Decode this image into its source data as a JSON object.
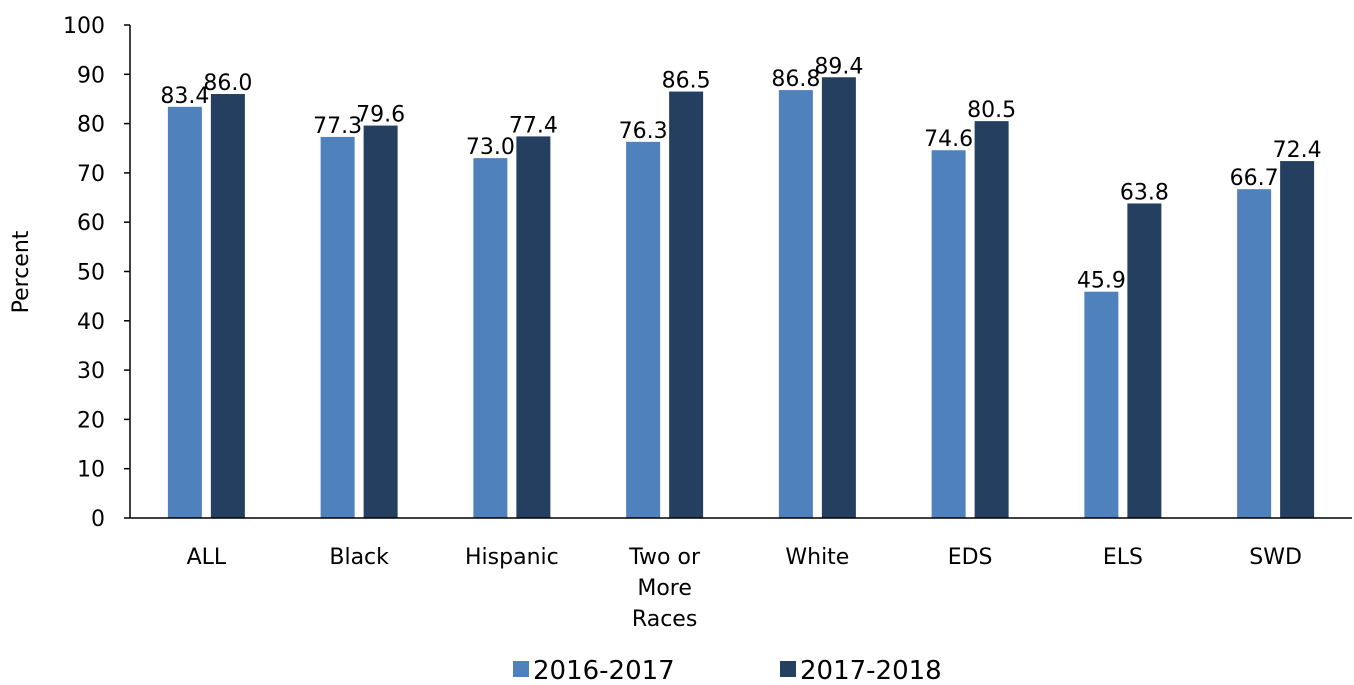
{
  "chart_data": {
    "type": "bar",
    "ylabel": "Percent",
    "ylim": [
      0,
      100
    ],
    "ytick_step": 10,
    "yticks": [
      "0",
      "10",
      "20",
      "30",
      "40",
      "50",
      "60",
      "70",
      "80",
      "90",
      "100"
    ],
    "grid": false,
    "legend_position": "bottom-center",
    "categories": [
      [
        "ALL"
      ],
      [
        "Black"
      ],
      [
        "Hispanic"
      ],
      [
        "Two or",
        "More",
        "Races"
      ],
      [
        "White"
      ],
      [
        "EDS"
      ],
      [
        "ELS"
      ],
      [
        "SWD"
      ]
    ],
    "series": [
      {
        "name": "2016-2017",
        "color": "#4f81bd",
        "values": [
          83.4,
          77.3,
          73.0,
          76.3,
          86.8,
          74.6,
          45.9,
          66.7
        ],
        "labels": [
          "83.4",
          "77.3",
          "73.0",
          "76.3",
          "86.8",
          "74.6",
          "45.9",
          "66.7"
        ]
      },
      {
        "name": "2017-2018",
        "color": "#243f60",
        "values": [
          86.0,
          79.6,
          77.4,
          86.5,
          89.4,
          80.5,
          63.8,
          72.4
        ],
        "labels": [
          "86.0",
          "79.6",
          "77.4",
          "86.5",
          "89.4",
          "80.5",
          "63.8",
          "72.4"
        ]
      }
    ]
  }
}
